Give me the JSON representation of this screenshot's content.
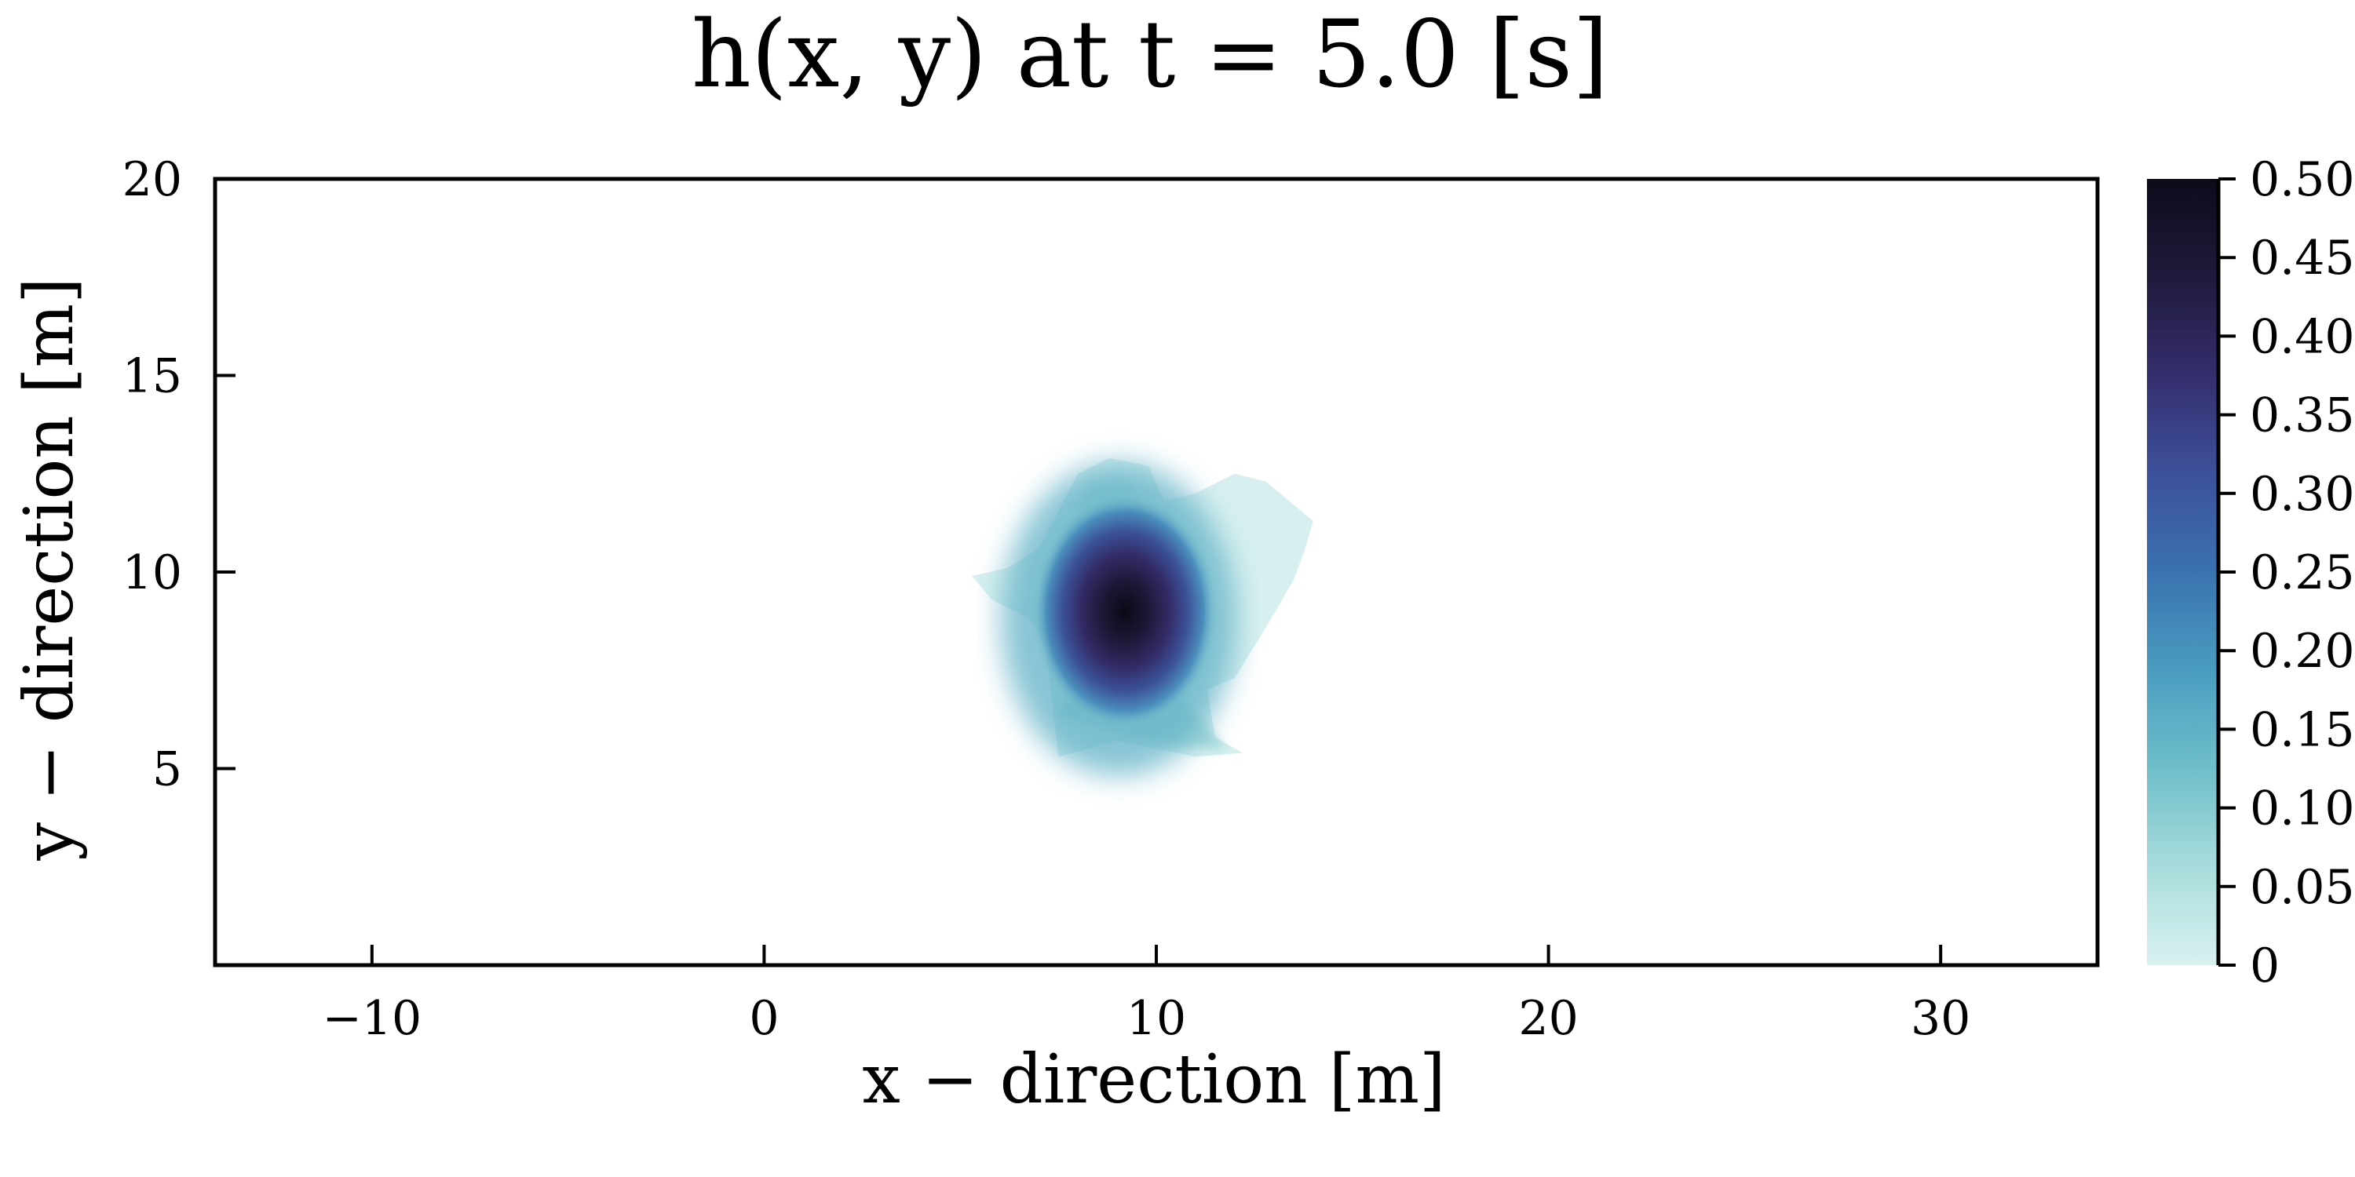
{
  "chart_data": {
    "type": "heatmap",
    "title": "h(x, y) at t = 5.0 [s]",
    "xlabel": "x − direction [m]",
    "ylabel": "y − direction [m]",
    "xlim": [
      -14,
      34
    ],
    "ylim": [
      0,
      20
    ],
    "xticks": [
      -10,
      0,
      10,
      20,
      30
    ],
    "xtick_labels": [
      "−10",
      "0",
      "10",
      "20",
      "30"
    ],
    "yticks": [
      5,
      10,
      15,
      20
    ],
    "ytick_labels": [
      "5",
      "10",
      "15",
      "20"
    ],
    "grid": false,
    "colorbar": {
      "range": [
        0,
        0.5
      ],
      "ticks": [
        0,
        0.05,
        0.1,
        0.15,
        0.2,
        0.25,
        0.3,
        0.35,
        0.4,
        0.45,
        0.5
      ],
      "tick_labels": [
        "0",
        "0.05",
        "0.10",
        "0.15",
        "0.20",
        "0.25",
        "0.30",
        "0.35",
        "0.40",
        "0.45",
        "0.50"
      ],
      "colors": [
        "#d9f2f0",
        "#a8dcdc",
        "#6fbfca",
        "#4a9cc0",
        "#3a72b0",
        "#3d519b",
        "#352e6e",
        "#1f1a3c",
        "#0c0b1a"
      ]
    },
    "peak": {
      "x": 9.2,
      "y": 9.0,
      "value": 0.5
    },
    "wet_region_outline": [
      [
        5.3,
        9.9
      ],
      [
        6.2,
        10.1
      ],
      [
        7.0,
        10.6
      ],
      [
        8.0,
        12.5
      ],
      [
        8.8,
        12.9
      ],
      [
        9.8,
        12.7
      ],
      [
        10.2,
        11.8
      ],
      [
        11.0,
        12.0
      ],
      [
        12.0,
        12.5
      ],
      [
        12.8,
        12.3
      ],
      [
        14.0,
        11.3
      ],
      [
        13.8,
        10.6
      ],
      [
        13.5,
        9.8
      ],
      [
        12.8,
        8.6
      ],
      [
        12.0,
        7.3
      ],
      [
        11.3,
        7.0
      ],
      [
        11.5,
        5.8
      ],
      [
        12.2,
        5.4
      ],
      [
        11.0,
        5.3
      ],
      [
        9.0,
        5.7
      ],
      [
        7.5,
        5.3
      ],
      [
        7.4,
        6.2
      ],
      [
        7.2,
        8.0
      ],
      [
        6.8,
        8.8
      ],
      [
        5.8,
        9.3
      ]
    ]
  }
}
